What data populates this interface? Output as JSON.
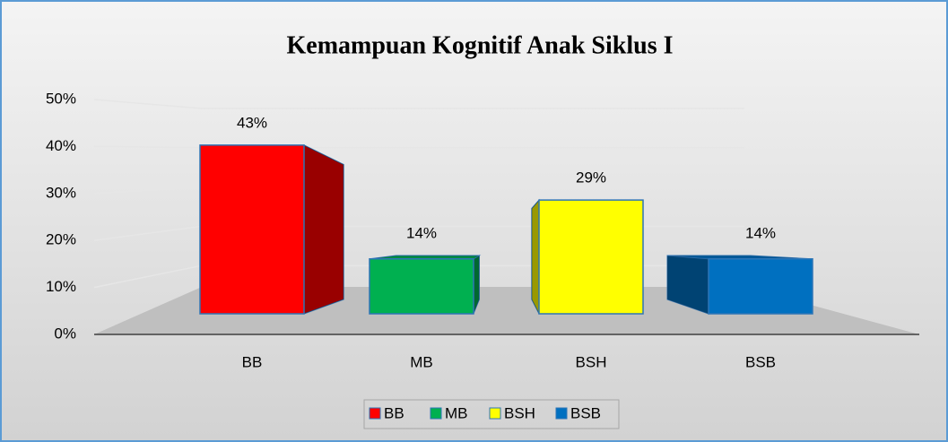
{
  "chart_data": {
    "type": "bar3d",
    "title": "Kemampuan Kognitif Anak Siklus I",
    "categories": [
      "BB",
      "MB",
      "BSH",
      "BSB"
    ],
    "values": [
      43,
      14,
      29,
      14
    ],
    "value_labels": [
      "43%",
      "14%",
      "29%",
      "14%"
    ],
    "colors": [
      "#ff0000",
      "#00b050",
      "#ffff00",
      "#0070c0"
    ],
    "ylim": [
      0,
      50
    ],
    "yticks": [
      {
        "value": 0,
        "label": "0%"
      },
      {
        "value": 10,
        "label": "10%"
      },
      {
        "value": 20,
        "label": "20%"
      },
      {
        "value": 30,
        "label": "30%"
      },
      {
        "value": 40,
        "label": "40%"
      },
      {
        "value": 50,
        "label": "50%"
      }
    ],
    "grid": true,
    "legend": "bottom"
  }
}
